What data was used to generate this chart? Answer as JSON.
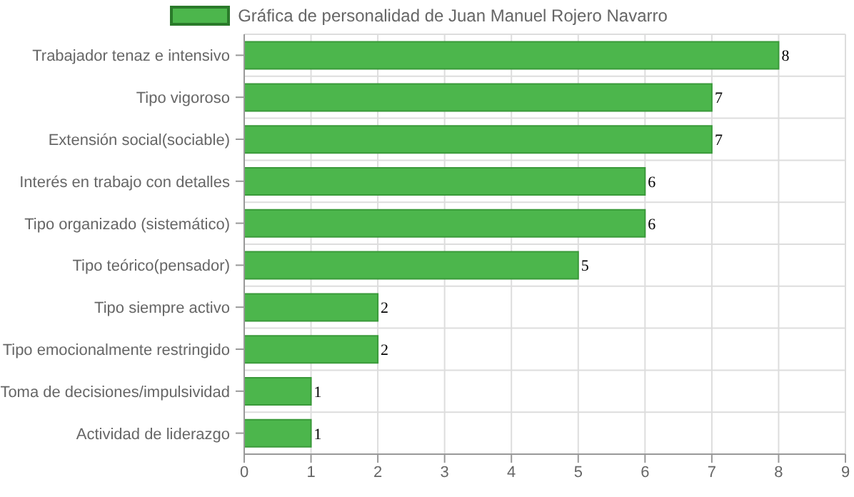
{
  "chart_data": {
    "type": "bar",
    "orientation": "horizontal",
    "categories": [
      "Trabajador tenaz e intensivo",
      "Tipo vigoroso",
      "Extensión social(sociable)",
      "Interés en trabajo con detalles",
      "Tipo organizado (sistemático)",
      "Tipo teórico(pensador)",
      "Tipo siempre activo",
      "Tipo emocionalmente restringido",
      "Toma de decisiones/impulsividad",
      "Actividad de liderazgo"
    ],
    "series": [
      {
        "name": "Gráfica de personalidad de Juan Manuel Rojero Navarro",
        "color": "#4cb64c",
        "values": [
          8,
          7,
          7,
          6,
          6,
          5,
          2,
          2,
          1,
          1
        ]
      }
    ],
    "xlim": [
      0,
      9
    ],
    "xticks": [
      0,
      1,
      2,
      3,
      4,
      5,
      6,
      7,
      8,
      9
    ],
    "grid": true,
    "legend": "top",
    "data_labels": true
  }
}
